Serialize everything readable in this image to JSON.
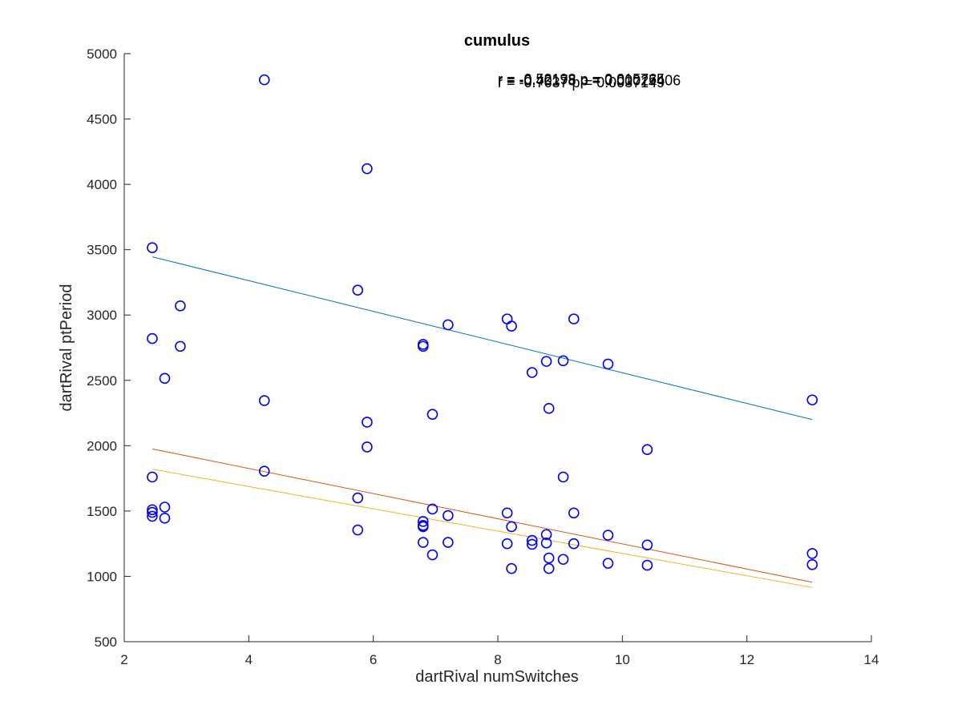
{
  "chart_data": {
    "type": "scatter",
    "title": "cumulus",
    "xlabel": "dartRival numSwitches",
    "ylabel": "dartRival ptPeriod",
    "xlim": [
      2,
      14
    ],
    "ylim": [
      500,
      5000
    ],
    "xticks": [
      2,
      4,
      6,
      8,
      10,
      12,
      14
    ],
    "yticks": [
      500,
      1000,
      1500,
      2000,
      2500,
      3000,
      3500,
      4000,
      4500,
      5000
    ],
    "grid": false,
    "box": false,
    "marker": "circle",
    "marker_color": "#0000ff",
    "points": [
      {
        "x": 2.45,
        "y": 3515
      },
      {
        "x": 2.45,
        "y": 2820
      },
      {
        "x": 2.45,
        "y": 1760
      },
      {
        "x": 2.45,
        "y": 1510
      },
      {
        "x": 2.45,
        "y": 1490
      },
      {
        "x": 2.45,
        "y": 1460
      },
      {
        "x": 2.65,
        "y": 2515
      },
      {
        "x": 2.65,
        "y": 1530
      },
      {
        "x": 2.65,
        "y": 1445
      },
      {
        "x": 2.9,
        "y": 3070
      },
      {
        "x": 2.9,
        "y": 2760
      },
      {
        "x": 4.25,
        "y": 4800
      },
      {
        "x": 4.25,
        "y": 2345
      },
      {
        "x": 4.25,
        "y": 1805
      },
      {
        "x": 5.75,
        "y": 3190
      },
      {
        "x": 5.75,
        "y": 1600
      },
      {
        "x": 5.75,
        "y": 1355
      },
      {
        "x": 5.9,
        "y": 4120
      },
      {
        "x": 5.9,
        "y": 2180
      },
      {
        "x": 5.9,
        "y": 1990
      },
      {
        "x": 6.8,
        "y": 2775
      },
      {
        "x": 6.8,
        "y": 2760
      },
      {
        "x": 6.8,
        "y": 1420
      },
      {
        "x": 6.8,
        "y": 1390
      },
      {
        "x": 6.8,
        "y": 1380
      },
      {
        "x": 6.8,
        "y": 1260
      },
      {
        "x": 6.95,
        "y": 2240
      },
      {
        "x": 6.95,
        "y": 1515
      },
      {
        "x": 6.95,
        "y": 1165
      },
      {
        "x": 7.2,
        "y": 2925
      },
      {
        "x": 7.2,
        "y": 1465
      },
      {
        "x": 7.2,
        "y": 1260
      },
      {
        "x": 8.15,
        "y": 2970
      },
      {
        "x": 8.15,
        "y": 1485
      },
      {
        "x": 8.15,
        "y": 1250
      },
      {
        "x": 8.22,
        "y": 2915
      },
      {
        "x": 8.22,
        "y": 1380
      },
      {
        "x": 8.22,
        "y": 1060
      },
      {
        "x": 8.55,
        "y": 2560
      },
      {
        "x": 8.55,
        "y": 1275
      },
      {
        "x": 8.55,
        "y": 1245
      },
      {
        "x": 8.78,
        "y": 2645
      },
      {
        "x": 8.78,
        "y": 1320
      },
      {
        "x": 8.78,
        "y": 1255
      },
      {
        "x": 8.82,
        "y": 2285
      },
      {
        "x": 8.82,
        "y": 1140
      },
      {
        "x": 8.82,
        "y": 1060
      },
      {
        "x": 9.05,
        "y": 2650
      },
      {
        "x": 9.05,
        "y": 1760
      },
      {
        "x": 9.05,
        "y": 1130
      },
      {
        "x": 9.22,
        "y": 2970
      },
      {
        "x": 9.22,
        "y": 1485
      },
      {
        "x": 9.22,
        "y": 1250
      },
      {
        "x": 9.77,
        "y": 2625
      },
      {
        "x": 9.77,
        "y": 1315
      },
      {
        "x": 9.77,
        "y": 1100
      },
      {
        "x": 10.4,
        "y": 1970
      },
      {
        "x": 10.4,
        "y": 1240
      },
      {
        "x": 10.4,
        "y": 1085
      },
      {
        "x": 13.05,
        "y": 2350
      },
      {
        "x": 13.05,
        "y": 1175
      },
      {
        "x": 13.05,
        "y": 1090
      }
    ],
    "fit_lines": [
      {
        "color": "#0072bd",
        "x": [
          2.45,
          13.05
        ],
        "y": [
          3445,
          2200
        ]
      },
      {
        "color": "#d95319",
        "x": [
          2.45,
          13.05
        ],
        "y": [
          1975,
          955
        ]
      },
      {
        "color": "#edb120",
        "x": [
          2.45,
          13.05
        ],
        "y": [
          1820,
          915
        ]
      }
    ],
    "annotations": [
      {
        "text": "r = -0.52198   p = 0.015765",
        "x": 8.0,
        "y": 4805
      },
      {
        "text": "r = -0.40178   p = 0.00027406",
        "x": 8.0,
        "y": 4795
      },
      {
        "text": "r = -0.7637   p = 0.0037149",
        "x": 8.0,
        "y": 4780
      }
    ]
  }
}
